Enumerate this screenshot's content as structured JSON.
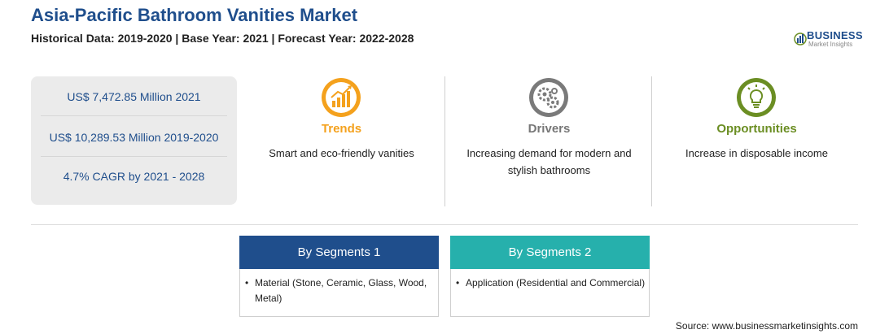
{
  "header": {
    "title": "Asia-Pacific Bathroom Vanities Market",
    "subtitle": "Historical Data: 2019-2020 | Base Year: 2021 | Forecast Year: 2022-2028"
  },
  "logo": {
    "word": "BUSINESS",
    "sub": "Market Insights",
    "icon": "bar-chart-logo-icon"
  },
  "stats": [
    "US$ 7,472.85 Million 2021",
    "US$ 10,289.53 Million 2019-2020",
    "4.7% CAGR by 2021 - 2028"
  ],
  "columns": [
    {
      "heading": "Trends",
      "desc": "Smart and eco-friendly vanities",
      "icon": "trend-chart-icon",
      "color": "#f4a11d"
    },
    {
      "heading": "Drivers",
      "desc": "Increasing demand for modern and stylish bathrooms",
      "icon": "gears-icon",
      "color": "#777777"
    },
    {
      "heading": "Opportunities",
      "desc": "Increase in disposable income",
      "icon": "lightbulb-icon",
      "color": "#6b8e23"
    }
  ],
  "segments": [
    {
      "title": "By Segments 1",
      "item": "Material (Stone, Ceramic, Glass, Wood, Metal)",
      "color": "#1f4e8c"
    },
    {
      "title": "By Segments 2",
      "item": "Application (Residential and Commercial)",
      "color": "#26b0ac"
    }
  ],
  "source": "Source: www.businessmarketinsights.com"
}
